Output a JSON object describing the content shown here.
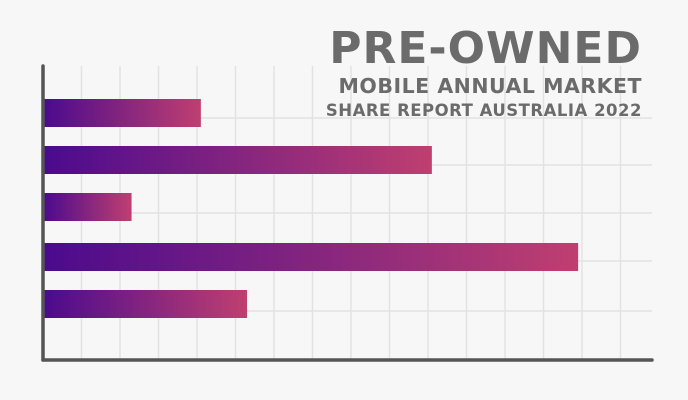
{
  "title": {
    "line1": "PRE-OWNED",
    "line2": "MOBILE ANNUAL MARKET",
    "line3": "SHARE REPORT AUSTRALIA 2022"
  },
  "colors": {
    "background": "#f7f7f7",
    "grid": "#e2e2e2",
    "axis": "#555555",
    "title": "#6b6b6b",
    "bar_start": "#4a0a8e",
    "bar_end": "#bf3f70"
  },
  "chart_data": {
    "type": "bar",
    "orientation": "horizontal",
    "categories": [
      "",
      "",
      "",
      "",
      ""
    ],
    "values": [
      20.5,
      50.5,
      11.5,
      69.5,
      26.5
    ],
    "xlim": [
      0,
      80
    ],
    "grid": true,
    "title": "PRE-OWNED MOBILE ANNUAL MARKET SHARE REPORT AUSTRALIA 2022",
    "xlabel": "",
    "ylabel": ""
  }
}
